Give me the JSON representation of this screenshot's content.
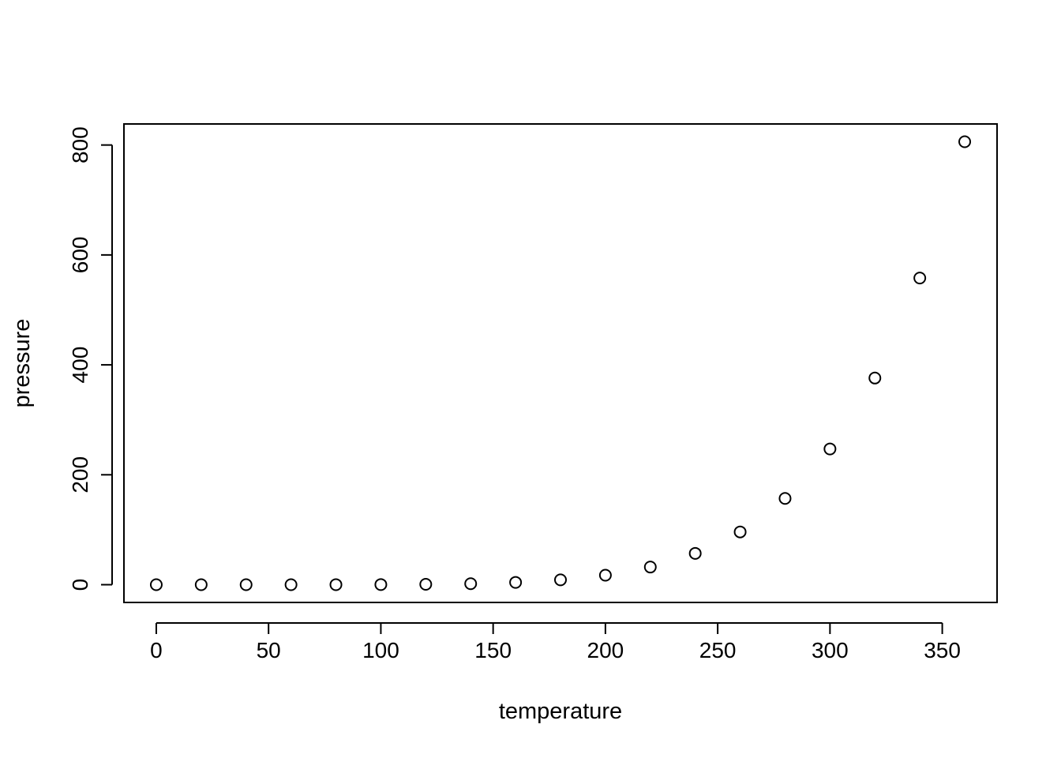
{
  "chart_data": {
    "type": "scatter",
    "title": "",
    "xlabel": "temperature",
    "ylabel": "pressure",
    "xlim": [
      -14.4,
      374.4
    ],
    "ylim": [
      -32.3,
      838.3
    ],
    "x_ticks": [
      0,
      50,
      100,
      150,
      200,
      250,
      300,
      350
    ],
    "y_ticks": [
      0,
      200,
      400,
      600,
      800
    ],
    "x_tick_labels": [
      "0",
      "50",
      "100",
      "150",
      "200",
      "250",
      "300",
      "350"
    ],
    "y_tick_labels": [
      "0",
      "200",
      "400",
      "600",
      "800"
    ],
    "grid": false,
    "legend": "none",
    "marker": "open-circle",
    "colors": {
      "point_stroke": "#000000",
      "axis": "#000000",
      "background": "#ffffff"
    },
    "series": [
      {
        "x": [
          0,
          20,
          40,
          60,
          80,
          100,
          120,
          140,
          160,
          180,
          200,
          220,
          240,
          260,
          280,
          300,
          320,
          340,
          360
        ],
        "y": [
          0.0002,
          0.0012,
          0.006,
          0.03,
          0.09,
          0.27,
          0.75,
          1.85,
          4.2,
          8.8,
          17.3,
          32.1,
          57,
          96,
          157,
          247,
          376,
          558,
          806
        ]
      }
    ]
  }
}
